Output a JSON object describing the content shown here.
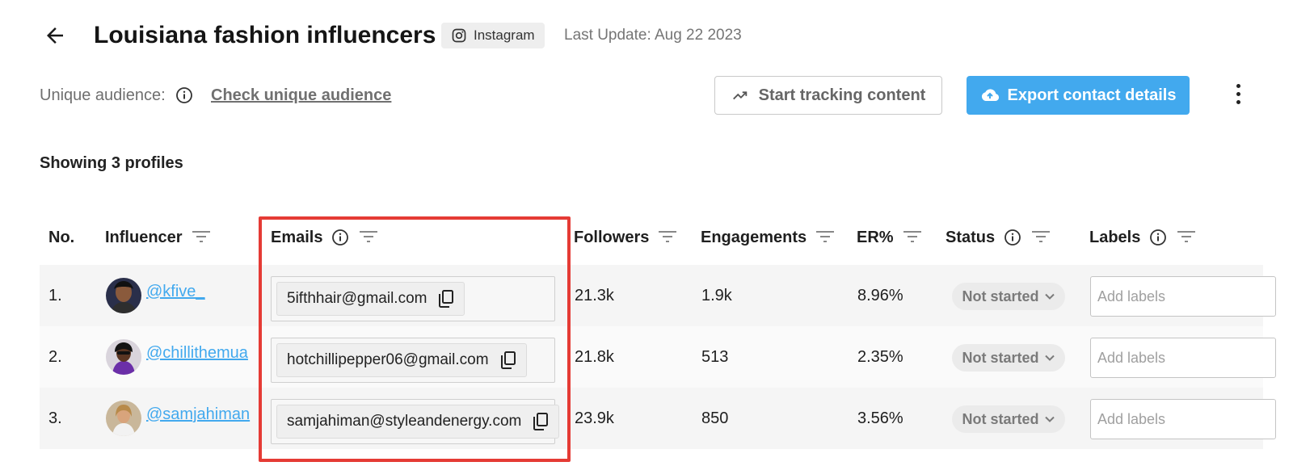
{
  "header": {
    "title": "Louisiana fashion influencers",
    "platform": "Instagram",
    "last_update": "Last Update: Aug 22 2023"
  },
  "audience": {
    "label": "Unique audience:",
    "link": "Check unique audience"
  },
  "actions": {
    "track_label": "Start tracking content",
    "export_label": "Export contact details"
  },
  "summary": {
    "showing": "Showing 3 profiles"
  },
  "table": {
    "columns": {
      "no": "No.",
      "influencer": "Influencer",
      "emails": "Emails",
      "followers": "Followers",
      "engagements": "Engagements",
      "er": "ER%",
      "status": "Status",
      "labels": "Labels"
    },
    "labels_placeholder": "Add labels",
    "rows": [
      {
        "no": "1.",
        "handle": "@kfive_",
        "email": "5ifthhair@gmail.com",
        "followers": "21.3k",
        "engagements": "1.9k",
        "er": "8.96%",
        "status": "Not started"
      },
      {
        "no": "2.",
        "handle": "@chillithemua",
        "email": "hotchillipepper06@gmail.com",
        "followers": "21.8k",
        "engagements": "513",
        "er": "2.35%",
        "status": "Not started"
      },
      {
        "no": "3.",
        "handle": "@samjahiman",
        "email": "samjahiman@styleandenergy.com",
        "followers": "23.9k",
        "engagements": "850",
        "er": "3.56%",
        "status": "Not started"
      }
    ]
  },
  "colors": {
    "accent": "#42a9ee",
    "highlight": "#e53b35",
    "row_bg": "#f5f5f5"
  },
  "icons": [
    "back-arrow-icon",
    "instagram-icon",
    "info-icon",
    "trending-up-icon",
    "cloud-upload-icon",
    "more-vertical-icon",
    "filter-icon",
    "copy-icon",
    "chevron-down-icon"
  ]
}
